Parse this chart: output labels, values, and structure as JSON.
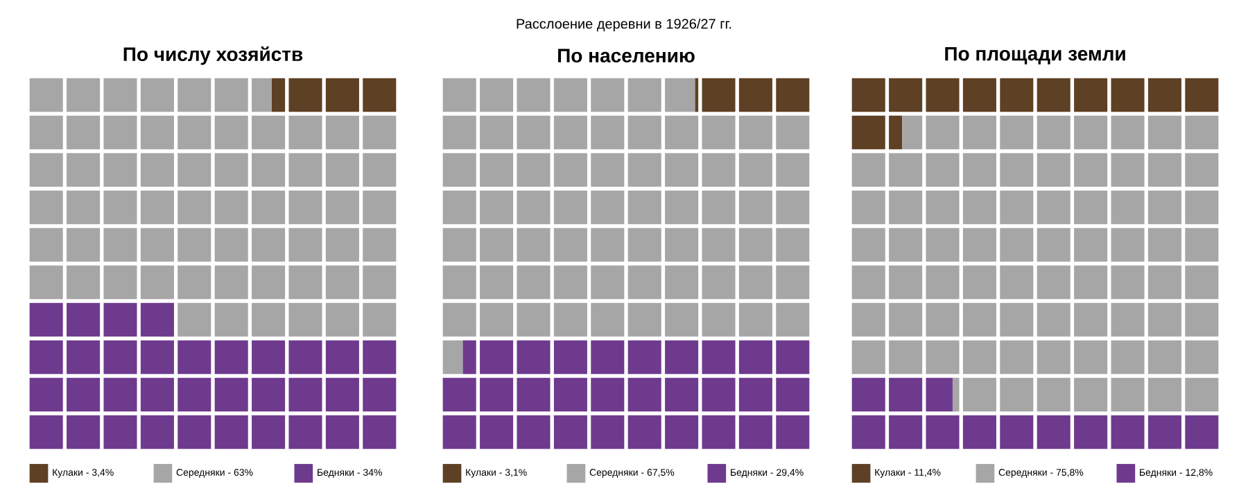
{
  "chart_data": [
    {
      "type": "other",
      "title": "По числу хозяйств",
      "annotations": [
        "Расслоение деревни в 1926/27 гг."
      ],
      "categories": [
        "Кулаки -",
        "Середняки -",
        "Бедняки -"
      ],
      "values": [
        3.4,
        63,
        34
      ],
      "value_labels": [
        "3,4%",
        "63%",
        "34%"
      ],
      "colors": [
        "#5e4024",
        "#a6a6a6",
        "#6e3a8e"
      ]
    },
    {
      "type": "other",
      "title": "По населению",
      "categories": [
        "Кулаки -",
        "Середняки -",
        "Бедняки -"
      ],
      "values": [
        3.1,
        67.5,
        29.4
      ],
      "value_labels": [
        "3,1%",
        "67,5%",
        "29,4%"
      ],
      "colors": [
        "#5e4024",
        "#a6a6a6",
        "#6e3a8e"
      ]
    },
    {
      "type": "other",
      "title": "По площади земли",
      "categories": [
        "Кулаки -",
        "Середняки -",
        "Бедняки -"
      ],
      "values": [
        11.4,
        75.8,
        12.8
      ],
      "value_labels": [
        "11,4%",
        "75,8%",
        "12,8%"
      ],
      "colors": [
        "#5e4024",
        "#a6a6a6",
        "#6e3a8e"
      ]
    }
  ]
}
